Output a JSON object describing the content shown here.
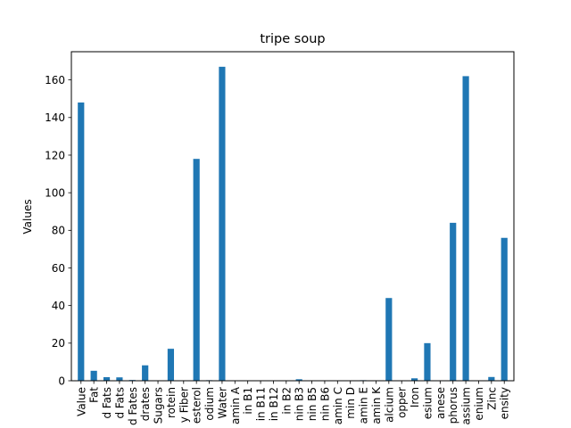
{
  "chart_data": {
    "type": "bar",
    "title": "tripe soup",
    "xlabel": "",
    "ylabel": "Values",
    "ylim": [
      0,
      175
    ],
    "yticks": [
      0,
      20,
      40,
      60,
      80,
      100,
      120,
      140,
      160
    ],
    "grid": false,
    "legend": "none",
    "bar_color": "#1f77b4",
    "categories": [
      "Value",
      "Fat",
      "d Fats",
      "d Fats",
      "d Fates",
      "drates",
      "Sugars",
      "rotein",
      "y Fiber",
      "esterol",
      "odium",
      "Water",
      "amin A",
      "in B1",
      "in B11",
      "in B12",
      "in B2",
      "nin B3",
      "nin B5",
      "nin B6",
      "amin C",
      "min D",
      "amin E",
      "amin K",
      "alcium",
      "opper",
      "Iron",
      "esium",
      "anese",
      "phorus",
      "assium",
      "enium",
      "Zinc",
      "ensity"
    ],
    "values": [
      148,
      5.3,
      1.9,
      1.8,
      0.4,
      8.2,
      0,
      17,
      0.1,
      118,
      0.3,
      167,
      0,
      0,
      0,
      0,
      0,
      0.8,
      0,
      0,
      0,
      0,
      0.3,
      0,
      44,
      0,
      1.3,
      20,
      0,
      84,
      162,
      0,
      2,
      76
    ]
  }
}
